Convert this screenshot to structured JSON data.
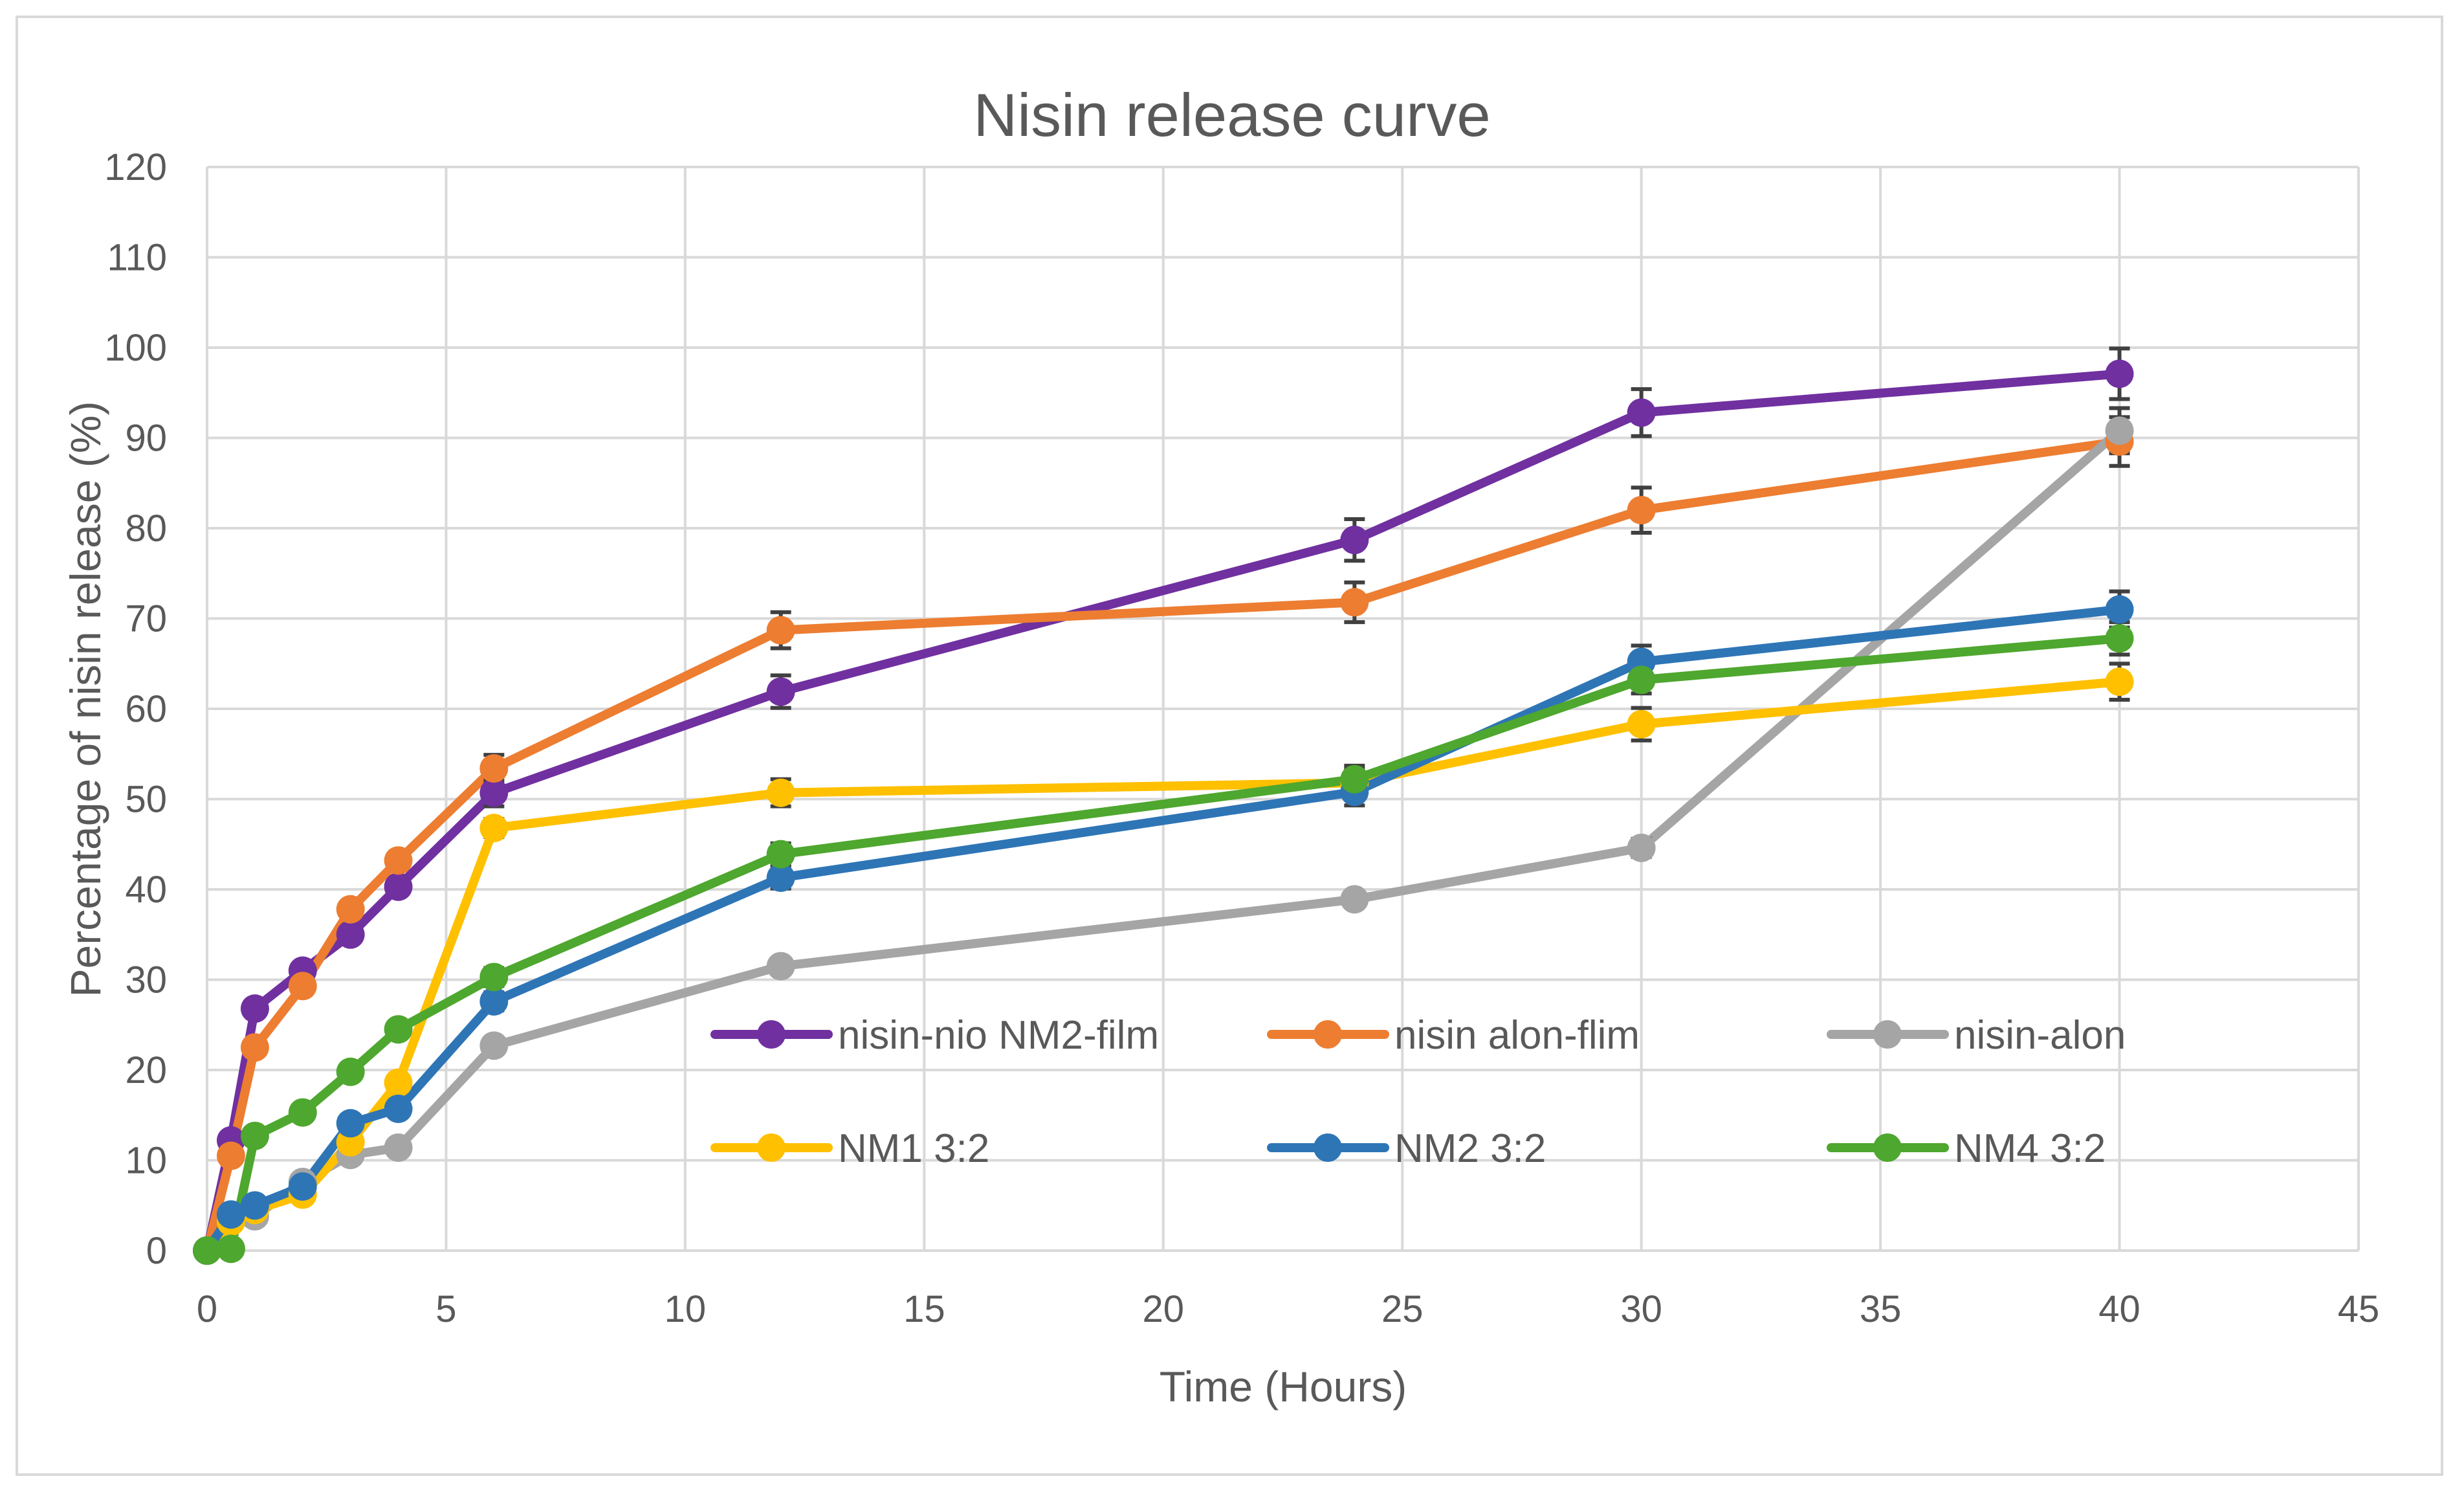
{
  "chart_data": {
    "type": "line",
    "title": "Nisin release curve",
    "xlabel": "Time (Hours)",
    "ylabel": "Percentage of nisin release (%)",
    "xlim": [
      0,
      45
    ],
    "ylim": [
      0,
      120
    ],
    "x_ticks": [
      0,
      5,
      10,
      15,
      20,
      25,
      30,
      35,
      40,
      45
    ],
    "y_ticks": [
      0,
      10,
      20,
      30,
      40,
      50,
      60,
      70,
      80,
      90,
      100,
      110,
      120
    ],
    "grid": true,
    "legend_position": "inside-lower-right",
    "series": [
      {
        "name": "nisin-nio NM2-film",
        "color": "#7030a0",
        "x": [
          0,
          0.5,
          1,
          2,
          3,
          4,
          6,
          12,
          24,
          30,
          40
        ],
        "y": [
          0,
          12.2,
          26.8,
          31,
          35,
          40.3,
          50.7,
          61.9,
          78.7,
          92.8,
          97.1
        ],
        "error": [
          0,
          0,
          0,
          0,
          0,
          0,
          1.5,
          1.8,
          2.3,
          2.6,
          2.8
        ]
      },
      {
        "name": "nisin alon-flim",
        "color": "#ed7d31",
        "x": [
          0,
          0.5,
          1,
          2,
          3,
          4,
          6,
          12,
          24,
          30,
          40
        ],
        "y": [
          0,
          10.5,
          22.5,
          29.3,
          37.8,
          43.2,
          53.4,
          68.7,
          71.8,
          82,
          89.6
        ],
        "error": [
          0,
          0,
          0,
          0,
          0,
          0,
          1.5,
          2,
          2.2,
          2.5,
          2.7
        ]
      },
      {
        "name": "nisin-alon",
        "color": "#a5a5a5",
        "x": [
          0,
          0.5,
          1,
          2,
          3,
          4,
          6,
          12,
          24,
          30,
          40
        ],
        "y": [
          0,
          3.2,
          3.8,
          7.6,
          10.6,
          11.4,
          22.7,
          31.5,
          38.9,
          44.6,
          90.8
        ],
        "error": [
          0,
          0,
          0,
          0,
          0,
          0,
          0,
          0,
          0,
          1,
          2.5
        ]
      },
      {
        "name": "NM1 3:2",
        "color": "#ffc000",
        "x": [
          0,
          0.5,
          1,
          2,
          3,
          4,
          6,
          12,
          24,
          30,
          40
        ],
        "y": [
          0,
          3.2,
          4.5,
          6.2,
          12,
          18.6,
          46.8,
          50.7,
          51.8,
          58.3,
          63
        ],
        "error": [
          0,
          0,
          0,
          0,
          0,
          0,
          1,
          1.5,
          1.5,
          1.8,
          2
        ]
      },
      {
        "name": "NM2 3:2",
        "color": "#2e75b6",
        "x": [
          0,
          0.5,
          1,
          2,
          3,
          4,
          6,
          12,
          24,
          30,
          40
        ],
        "y": [
          0,
          4,
          5,
          7.1,
          14.1,
          15.7,
          27.6,
          41.3,
          50.8,
          65.2,
          71
        ],
        "error": [
          0,
          0,
          0,
          0,
          0,
          0,
          1,
          1.2,
          1.5,
          1.8,
          2
        ]
      },
      {
        "name": "NM4 3:2",
        "color": "#4ea72e",
        "x": [
          0,
          0.5,
          1,
          2,
          3,
          4,
          6,
          12,
          24,
          30,
          40
        ],
        "y": [
          0,
          0.2,
          12.7,
          15.3,
          19.8,
          24.5,
          30.3,
          43.9,
          52.2,
          63.2,
          67.8
        ],
        "error": [
          0,
          0,
          0,
          0,
          0,
          0,
          1,
          1.2,
          1.5,
          1.5,
          1.8
        ]
      }
    ]
  }
}
